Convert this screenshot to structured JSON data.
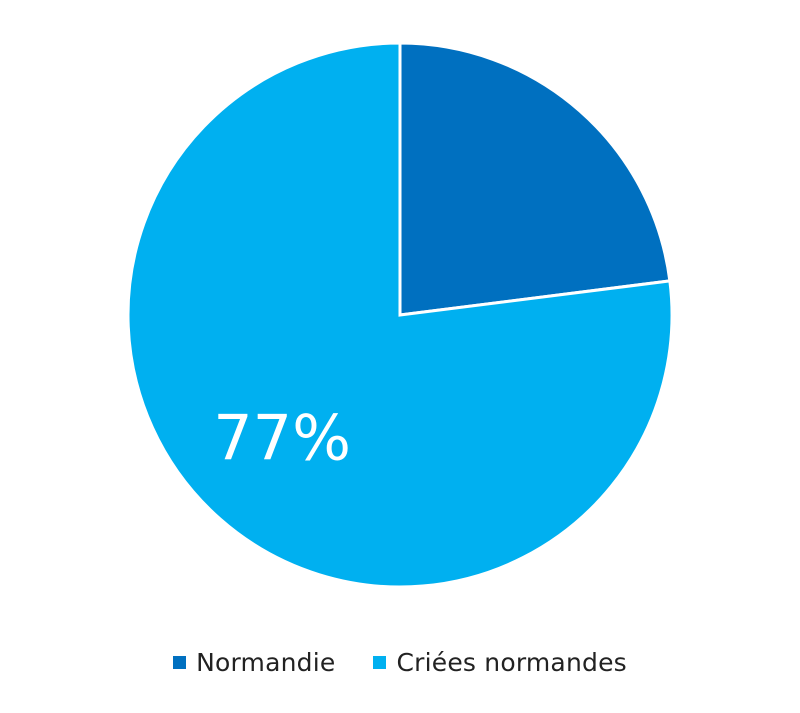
{
  "chart_data": {
    "type": "pie",
    "title": "",
    "slices": [
      {
        "label": "Normandie",
        "value": 23,
        "color": "#0070c0"
      },
      {
        "label": "Criées normandes",
        "value": 77,
        "color": "#00b0f0"
      }
    ],
    "data_labels": [
      {
        "slice": 1,
        "text": "77%",
        "color": "#ffffff"
      }
    ],
    "start_angle_deg": 0,
    "direction": "clockwise",
    "legend_position": "bottom"
  }
}
